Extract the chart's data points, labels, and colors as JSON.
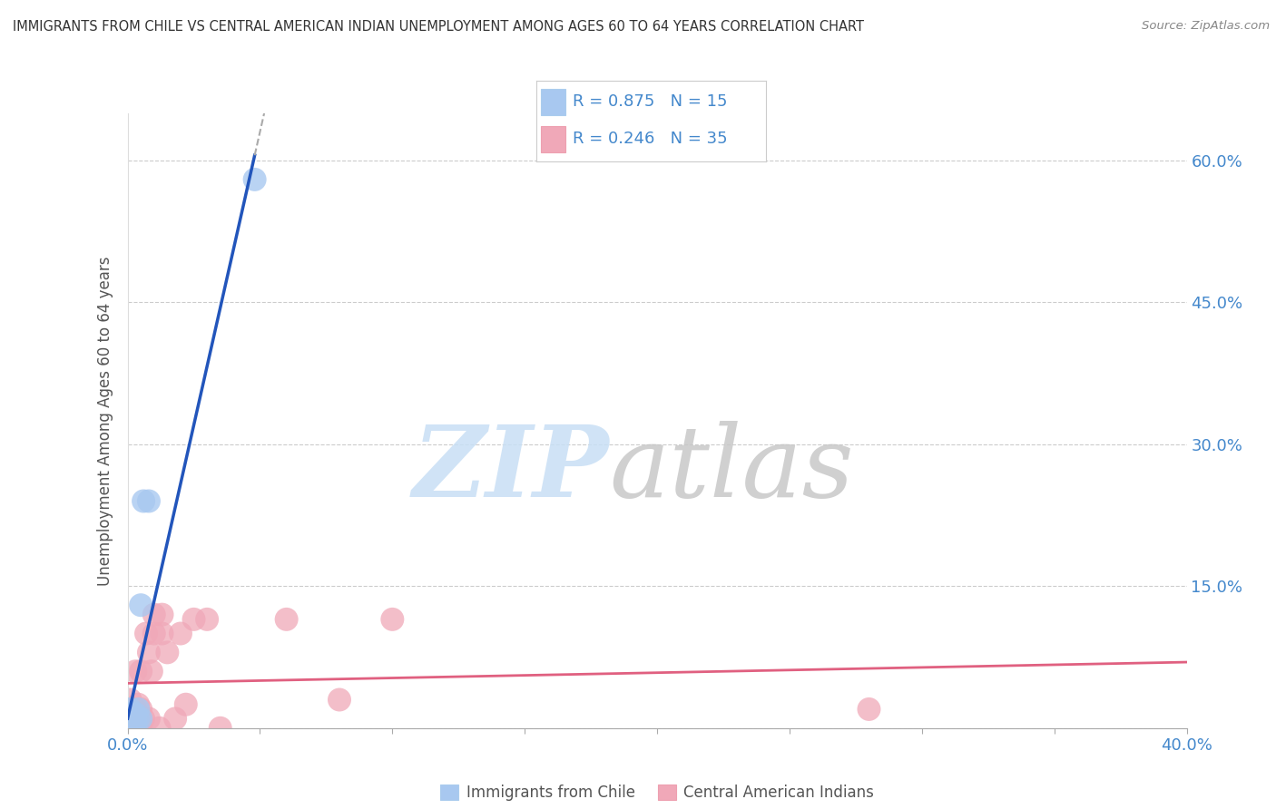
{
  "title": "IMMIGRANTS FROM CHILE VS CENTRAL AMERICAN INDIAN UNEMPLOYMENT AMONG AGES 60 TO 64 YEARS CORRELATION CHART",
  "source": "Source: ZipAtlas.com",
  "ylabel": "Unemployment Among Ages 60 to 64 years",
  "xlim": [
    0.0,
    0.4
  ],
  "ylim": [
    0.0,
    0.65
  ],
  "chile_R": "0.875",
  "chile_N": "15",
  "cai_R": "0.246",
  "cai_N": "35",
  "chile_color": "#a8c8f0",
  "cai_color": "#f0a8b8",
  "chile_line_color": "#2255bb",
  "cai_line_color": "#e06080",
  "legend_label_chile": "Immigrants from Chile",
  "legend_label_cai": "Central American Indians",
  "background_color": "#ffffff",
  "grid_color": "#cccccc",
  "title_color": "#333333",
  "axis_label_color": "#555555",
  "tick_color": "#4488cc",
  "legend_R_N_color": "#4488cc",
  "watermark_zip_color": "#c8dff5",
  "watermark_atlas_color": "#c8c8c8"
}
